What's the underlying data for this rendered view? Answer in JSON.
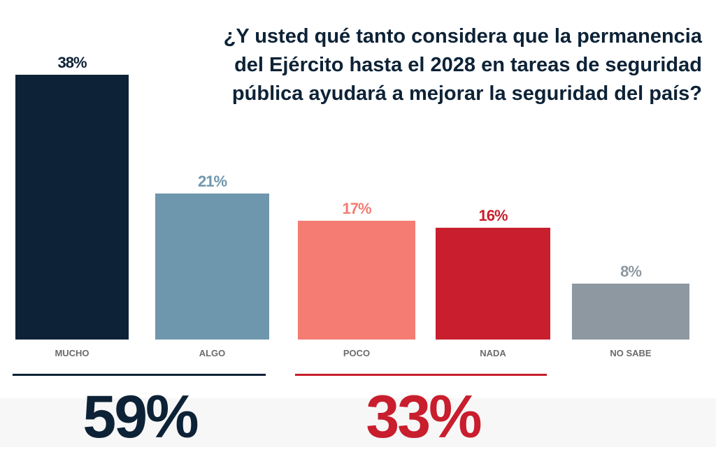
{
  "chart_data": {
    "type": "bar",
    "title": [
      "¿Y usted qué tanto considera que la permanencia",
      "del Ejército hasta el 2028 en tareas de seguridad",
      "pública ayudará a mejorar la seguridad del país?"
    ],
    "categories": [
      "MUCHO",
      "ALGO",
      "POCO",
      "NADA",
      "NO SABE"
    ],
    "values": [
      38,
      21,
      17,
      16,
      8
    ],
    "value_labels": [
      "38%",
      "21%",
      "17%",
      "16%",
      "8%"
    ],
    "colors": [
      "#0d2236",
      "#6e97ad",
      "#f47c72",
      "#c81e2d",
      "#8d98a1"
    ],
    "label_colors": [
      "#0d2236",
      "#6e97ad",
      "#f47c72",
      "#c81e2d",
      "#8d98a1"
    ],
    "grid": false,
    "groups": [
      {
        "label": "59%",
        "color": "#0d2236",
        "categories": [
          "MUCHO",
          "ALGO"
        ]
      },
      {
        "label": "33%",
        "color": "#c81e2d",
        "categories": [
          "POCO",
          "NADA"
        ]
      }
    ]
  }
}
